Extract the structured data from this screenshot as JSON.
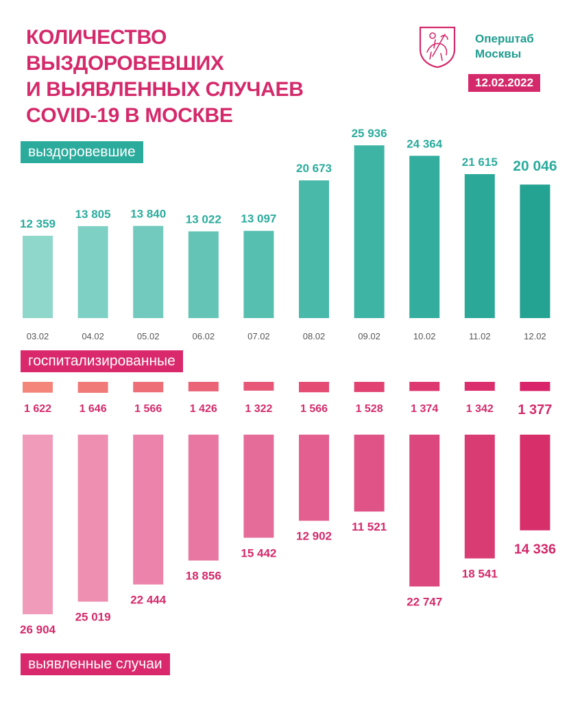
{
  "header": {
    "title_lines": [
      "Количество выздоровевших",
      "и выявленных случаев",
      "COVID-19 в Москве"
    ],
    "org_lines": [
      "Оперштаб",
      "Москвы"
    ],
    "date": "12.02.2022",
    "logo_icon": "moscow-coat-of-arms-icon"
  },
  "labels": {
    "recovered": "выздоровевшие",
    "hospitalized": "госпитализированные",
    "detected": "выявленные случаи"
  },
  "colors": {
    "accent": "#d4296a",
    "teal": "#2bab9c",
    "date_text": "#555555"
  },
  "chart_data": [
    {
      "type": "bar",
      "name": "выздоровевшие",
      "categories": [
        "03.02",
        "04.02",
        "05.02",
        "06.02",
        "07.02",
        "08.02",
        "09.02",
        "10.02",
        "11.02",
        "12.02"
      ],
      "values": [
        12359,
        13805,
        13840,
        13022,
        13097,
        20673,
        25936,
        24364,
        21615,
        20046
      ],
      "value_labels": [
        "12 359",
        "13 805",
        "13 840",
        "13 022",
        "13 097",
        "20 673",
        "25 936",
        "24 364",
        "21 615",
        "20 046"
      ],
      "colors": [
        "#8fd6cb",
        "#7fd0c4",
        "#71cabd",
        "#64c4b6",
        "#56bfb0",
        "#49b9aa",
        "#3db4a4",
        "#33ae9e",
        "#2ba898",
        "#24a292"
      ]
    },
    {
      "type": "bar",
      "name": "госпитализированные",
      "categories": [
        "03.02",
        "04.02",
        "05.02",
        "06.02",
        "07.02",
        "08.02",
        "09.02",
        "10.02",
        "11.02",
        "12.02"
      ],
      "values": [
        1622,
        1646,
        1566,
        1426,
        1322,
        1566,
        1528,
        1374,
        1342,
        1377
      ],
      "value_labels": [
        "1 622",
        "1 646",
        "1 566",
        "1 426",
        "1 322",
        "1 566",
        "1 528",
        "1 374",
        "1 342",
        "1 377"
      ],
      "colors": [
        "#f3857a",
        "#f07a78",
        "#ed6e77",
        "#ea6377",
        "#e75777",
        "#e44c74",
        "#e14272",
        "#de3870",
        "#db2e6d",
        "#d9236a"
      ]
    },
    {
      "type": "bar",
      "name": "выявленные случаи",
      "categories": [
        "03.02",
        "04.02",
        "05.02",
        "06.02",
        "07.02",
        "08.02",
        "09.02",
        "10.02",
        "11.02",
        "12.02"
      ],
      "values": [
        26904,
        25019,
        22444,
        18856,
        15442,
        12902,
        11521,
        22747,
        18541,
        14336
      ],
      "value_labels": [
        "26 904",
        "25 019",
        "22 444",
        "18 856",
        "15 442",
        "12 902",
        "11 521",
        "22 747",
        "18 541",
        "14 336"
      ],
      "colors": [
        "#f19bbb",
        "#ee8fb2",
        "#eb83aa",
        "#e877a2",
        "#e56b99",
        "#e25f90",
        "#df5386",
        "#dc477d",
        "#d93b73",
        "#d72f69"
      ]
    }
  ]
}
